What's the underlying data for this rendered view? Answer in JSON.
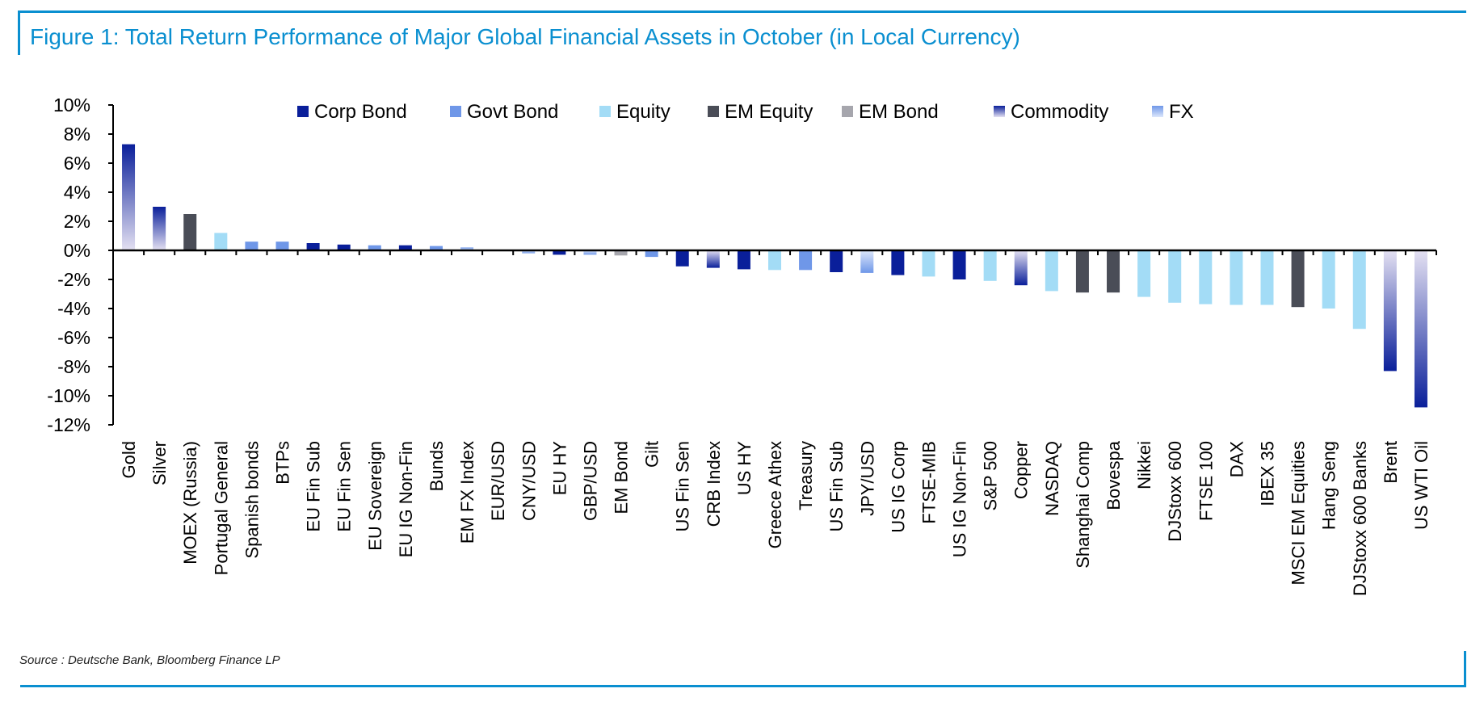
{
  "page": {
    "title": "Figure 1: Total Return Performance of Major Global Financial Assets in October (in Local Currency)",
    "source": "Source : Deutsche Bank, Bloomberg Finance LP",
    "accent_color": "#0a8fd0"
  },
  "chart_data": {
    "type": "bar",
    "title": "",
    "xlabel": "",
    "ylabel": "",
    "ylim": [
      -12,
      10
    ],
    "yticks": [
      10,
      8,
      6,
      4,
      2,
      0,
      -2,
      -4,
      -6,
      -8,
      -10,
      -12
    ],
    "ytick_labels": [
      "10%",
      "8%",
      "6%",
      "4%",
      "2%",
      "0%",
      "-2%",
      "-4%",
      "-6%",
      "-8%",
      "-10%",
      "-12%"
    ],
    "grid": false,
    "legend_position": "top",
    "legend": [
      {
        "name": "Corp Bond",
        "color": "#0a1f9a",
        "gradient": false
      },
      {
        "name": "Govt Bond",
        "color": "#6f97e8",
        "gradient": false
      },
      {
        "name": "Equity",
        "color": "#a3dcf6",
        "gradient": false
      },
      {
        "name": "EM Equity",
        "color": "#4a4d57",
        "gradient": false
      },
      {
        "name": "EM Bond",
        "color": "#a6a6ad",
        "gradient": false
      },
      {
        "name": "Commodity",
        "color": "#0a1f9a",
        "color_light": "#e4e1f2",
        "gradient": true
      },
      {
        "name": "FX",
        "color": "#6f97e8",
        "color_light": "#dde7fb",
        "gradient": true
      }
    ],
    "categories": [
      "Gold",
      "Silver",
      "MOEX (Russia)",
      "Portugal General",
      "Spanish bonds",
      "BTPs",
      "EU Fin Sub",
      "EU Fin Sen",
      "EU Sovereign",
      "EU IG Non-Fin",
      "Bunds",
      "EM FX Index",
      "EUR/USD",
      "CNY/USD",
      "EU HY",
      "GBP/USD",
      "EM Bond",
      "Gilt",
      "US Fin Sen",
      "CRB Index",
      "US HY",
      "Greece Athex",
      "Treasury",
      "US Fin Sub",
      "JPY/USD",
      "US IG Corp",
      "FTSE-MIB",
      "US IG Non-Fin",
      "S&P 500",
      "Copper",
      "NASDAQ",
      "Shanghai Comp",
      "Bovespa",
      "Nikkei",
      "DJStoxx 600",
      "FTSE 100",
      "DAX",
      "IBEX 35",
      "MSCI EM Equities",
      "Hang Seng",
      "DJStoxx 600 Banks",
      "Brent",
      "US WTI Oil"
    ],
    "values": [
      7.3,
      3.0,
      2.5,
      1.2,
      0.6,
      0.6,
      0.5,
      0.4,
      0.35,
      0.35,
      0.3,
      0.2,
      -0.05,
      -0.2,
      -0.3,
      -0.3,
      -0.35,
      -0.45,
      -1.1,
      -1.2,
      -1.3,
      -1.35,
      -1.35,
      -1.5,
      -1.55,
      -1.7,
      -1.8,
      -2.0,
      -2.1,
      -2.4,
      -2.8,
      -2.9,
      -2.9,
      -3.2,
      -3.6,
      -3.7,
      -3.75,
      -3.75,
      -3.9,
      -4.0,
      -5.4,
      -8.3,
      -10.8
    ],
    "asset_class": [
      "Commodity",
      "Commodity",
      "EM Equity",
      "Equity",
      "Govt Bond",
      "Govt Bond",
      "Corp Bond",
      "Corp Bond",
      "Govt Bond",
      "Corp Bond",
      "Govt Bond",
      "FX",
      "FX",
      "FX",
      "Corp Bond",
      "FX",
      "EM Bond",
      "Govt Bond",
      "Corp Bond",
      "Commodity",
      "Corp Bond",
      "Equity",
      "Govt Bond",
      "Corp Bond",
      "FX",
      "Corp Bond",
      "Equity",
      "Corp Bond",
      "Equity",
      "Commodity",
      "Equity",
      "EM Equity",
      "EM Equity",
      "Equity",
      "Equity",
      "Equity",
      "Equity",
      "Equity",
      "EM Equity",
      "Equity",
      "Equity",
      "Commodity",
      "Commodity"
    ]
  }
}
